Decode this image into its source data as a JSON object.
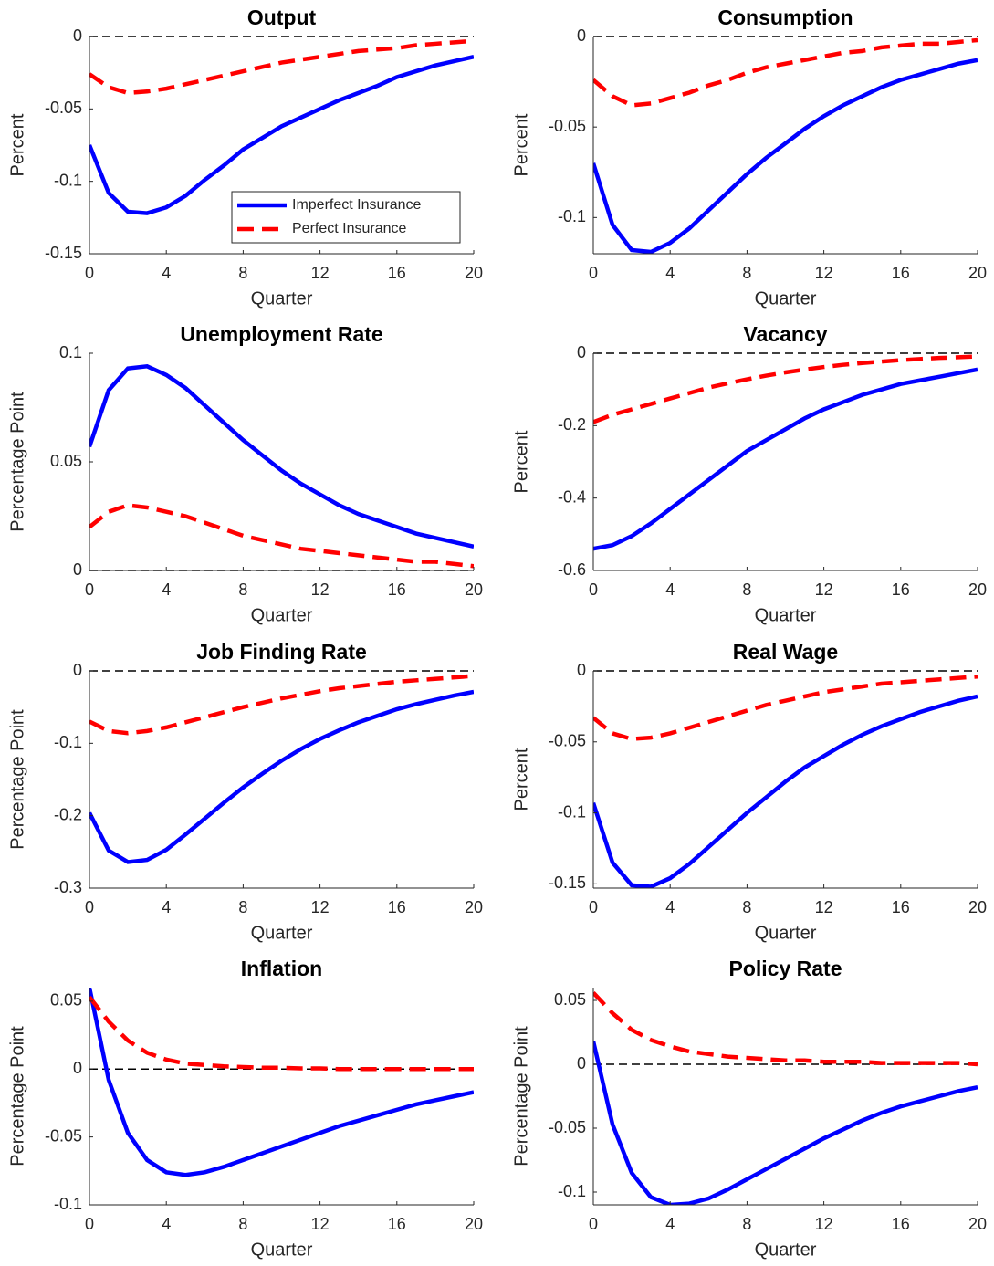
{
  "chart_data": [
    {
      "type": "line",
      "title": "Output",
      "xlabel": "Quarter",
      "ylabel": "Percent",
      "x": [
        0,
        1,
        2,
        3,
        4,
        5,
        6,
        7,
        8,
        9,
        10,
        11,
        12,
        13,
        14,
        15,
        16,
        17,
        18,
        19,
        20
      ],
      "xlim": [
        0,
        20
      ],
      "xticks": [
        0,
        4,
        8,
        12,
        16,
        20
      ],
      "ylim": [
        -0.15,
        0
      ],
      "yticks": [
        -0.15,
        -0.1,
        -0.05,
        0
      ],
      "hline": 0,
      "legend": "lower right",
      "series": [
        {
          "name": "Imperfect Insurance",
          "color": "#0000ff",
          "dash": false,
          "values": [
            -0.075,
            -0.108,
            -0.121,
            -0.122,
            -0.118,
            -0.11,
            -0.099,
            -0.089,
            -0.078,
            -0.07,
            -0.062,
            -0.056,
            -0.05,
            -0.044,
            -0.039,
            -0.034,
            -0.028,
            -0.024,
            -0.02,
            -0.017,
            -0.014
          ]
        },
        {
          "name": "Perfect Insurance",
          "color": "#ff0000",
          "dash": true,
          "values": [
            -0.026,
            -0.035,
            -0.039,
            -0.038,
            -0.036,
            -0.033,
            -0.03,
            -0.027,
            -0.024,
            -0.021,
            -0.018,
            -0.016,
            -0.014,
            -0.012,
            -0.01,
            -0.009,
            -0.008,
            -0.006,
            -0.005,
            -0.004,
            -0.003
          ]
        }
      ]
    },
    {
      "type": "line",
      "title": "Consumption",
      "xlabel": "Quarter",
      "ylabel": "Percent",
      "x": [
        0,
        1,
        2,
        3,
        4,
        5,
        6,
        7,
        8,
        9,
        10,
        11,
        12,
        13,
        14,
        15,
        16,
        17,
        18,
        19,
        20
      ],
      "xlim": [
        0,
        20
      ],
      "xticks": [
        0,
        4,
        8,
        12,
        16,
        20
      ],
      "ylim": [
        -0.12,
        0
      ],
      "yticks": [
        -0.1,
        -0.05,
        0
      ],
      "hline": 0,
      "series": [
        {
          "color": "#0000ff",
          "dash": false,
          "values": [
            -0.07,
            -0.104,
            -0.118,
            -0.119,
            -0.114,
            -0.106,
            -0.096,
            -0.086,
            -0.076,
            -0.067,
            -0.059,
            -0.051,
            -0.044,
            -0.038,
            -0.033,
            -0.028,
            -0.024,
            -0.021,
            -0.018,
            -0.015,
            -0.013
          ]
        },
        {
          "color": "#ff0000",
          "dash": true,
          "values": [
            -0.024,
            -0.033,
            -0.038,
            -0.037,
            -0.034,
            -0.031,
            -0.027,
            -0.024,
            -0.02,
            -0.017,
            -0.015,
            -0.013,
            -0.011,
            -0.009,
            -0.008,
            -0.006,
            -0.005,
            -0.004,
            -0.004,
            -0.003,
            -0.002
          ]
        }
      ]
    },
    {
      "type": "line",
      "title": "Unemployment Rate",
      "xlabel": "Quarter",
      "ylabel": "Percentage Point",
      "x": [
        0,
        1,
        2,
        3,
        4,
        5,
        6,
        7,
        8,
        9,
        10,
        11,
        12,
        13,
        14,
        15,
        16,
        17,
        18,
        19,
        20
      ],
      "xlim": [
        0,
        20
      ],
      "xticks": [
        0,
        4,
        8,
        12,
        16,
        20
      ],
      "ylim": [
        0,
        0.1
      ],
      "yticks": [
        0,
        0.05,
        0.1
      ],
      "hline": 0,
      "series": [
        {
          "color": "#0000ff",
          "dash": false,
          "values": [
            0.057,
            0.083,
            0.093,
            0.094,
            0.09,
            0.084,
            0.076,
            0.068,
            0.06,
            0.053,
            0.046,
            0.04,
            0.035,
            0.03,
            0.026,
            0.023,
            0.02,
            0.017,
            0.015,
            0.013,
            0.011
          ]
        },
        {
          "color": "#ff0000",
          "dash": true,
          "values": [
            0.02,
            0.027,
            0.03,
            0.029,
            0.027,
            0.025,
            0.022,
            0.019,
            0.016,
            0.014,
            0.012,
            0.01,
            0.009,
            0.008,
            0.007,
            0.006,
            0.005,
            0.004,
            0.004,
            0.003,
            0.002
          ]
        }
      ]
    },
    {
      "type": "line",
      "title": "Vacancy",
      "xlabel": "Quarter",
      "ylabel": "Percent",
      "x": [
        0,
        1,
        2,
        3,
        4,
        5,
        6,
        7,
        8,
        9,
        10,
        11,
        12,
        13,
        14,
        15,
        16,
        17,
        18,
        19,
        20
      ],
      "xlim": [
        0,
        20
      ],
      "xticks": [
        0,
        4,
        8,
        12,
        16,
        20
      ],
      "ylim": [
        -0.6,
        0
      ],
      "yticks": [
        -0.6,
        -0.4,
        -0.2,
        0
      ],
      "hline": 0,
      "series": [
        {
          "color": "#0000ff",
          "dash": false,
          "values": [
            -0.54,
            -0.53,
            -0.505,
            -0.47,
            -0.43,
            -0.39,
            -0.35,
            -0.31,
            -0.27,
            -0.24,
            -0.21,
            -0.18,
            -0.155,
            -0.135,
            -0.115,
            -0.1,
            -0.085,
            -0.075,
            -0.065,
            -0.055,
            -0.045
          ]
        },
        {
          "color": "#ff0000",
          "dash": true,
          "values": [
            -0.19,
            -0.17,
            -0.155,
            -0.14,
            -0.125,
            -0.11,
            -0.095,
            -0.083,
            -0.072,
            -0.062,
            -0.053,
            -0.045,
            -0.038,
            -0.032,
            -0.027,
            -0.023,
            -0.019,
            -0.016,
            -0.013,
            -0.011,
            -0.009
          ]
        }
      ]
    },
    {
      "type": "line",
      "title": "Job Finding Rate",
      "xlabel": "Quarter",
      "ylabel": "Percentage Point",
      "x": [
        0,
        1,
        2,
        3,
        4,
        5,
        6,
        7,
        8,
        9,
        10,
        11,
        12,
        13,
        14,
        15,
        16,
        17,
        18,
        19,
        20
      ],
      "xlim": [
        0,
        20
      ],
      "xticks": [
        0,
        4,
        8,
        12,
        16,
        20
      ],
      "ylim": [
        -0.3,
        0
      ],
      "yticks": [
        -0.3,
        -0.2,
        -0.1,
        0
      ],
      "hline": 0,
      "series": [
        {
          "color": "#0000ff",
          "dash": false,
          "values": [
            -0.196,
            -0.248,
            -0.264,
            -0.261,
            -0.247,
            -0.226,
            -0.204,
            -0.182,
            -0.161,
            -0.142,
            -0.124,
            -0.108,
            -0.094,
            -0.082,
            -0.071,
            -0.062,
            -0.053,
            -0.046,
            -0.04,
            -0.034,
            -0.029
          ]
        },
        {
          "color": "#ff0000",
          "dash": true,
          "values": [
            -0.07,
            -0.083,
            -0.086,
            -0.083,
            -0.078,
            -0.071,
            -0.064,
            -0.057,
            -0.05,
            -0.044,
            -0.038,
            -0.033,
            -0.028,
            -0.024,
            -0.021,
            -0.018,
            -0.015,
            -0.013,
            -0.011,
            -0.009,
            -0.007
          ]
        }
      ]
    },
    {
      "type": "line",
      "title": "Real Wage",
      "xlabel": "Quarter",
      "ylabel": "Percent",
      "x": [
        0,
        1,
        2,
        3,
        4,
        5,
        6,
        7,
        8,
        9,
        10,
        11,
        12,
        13,
        14,
        15,
        16,
        17,
        18,
        19,
        20
      ],
      "xlim": [
        0,
        20
      ],
      "xticks": [
        0,
        4,
        8,
        12,
        16,
        20
      ],
      "ylim": [
        -0.153,
        0
      ],
      "yticks": [
        -0.15,
        -0.1,
        -0.05,
        0
      ],
      "hline": 0,
      "series": [
        {
          "color": "#0000ff",
          "dash": false,
          "values": [
            -0.093,
            -0.135,
            -0.151,
            -0.152,
            -0.146,
            -0.136,
            -0.124,
            -0.112,
            -0.1,
            -0.089,
            -0.078,
            -0.068,
            -0.06,
            -0.052,
            -0.045,
            -0.039,
            -0.034,
            -0.029,
            -0.025,
            -0.021,
            -0.018
          ]
        },
        {
          "color": "#ff0000",
          "dash": true,
          "values": [
            -0.033,
            -0.044,
            -0.048,
            -0.047,
            -0.044,
            -0.04,
            -0.036,
            -0.032,
            -0.028,
            -0.024,
            -0.021,
            -0.018,
            -0.015,
            -0.013,
            -0.011,
            -0.009,
            -0.008,
            -0.007,
            -0.006,
            -0.005,
            -0.004
          ]
        }
      ]
    },
    {
      "type": "line",
      "title": "Inflation",
      "xlabel": "Quarter",
      "ylabel": "Percentage Point",
      "x": [
        0,
        1,
        2,
        3,
        4,
        5,
        6,
        7,
        8,
        9,
        10,
        11,
        12,
        13,
        14,
        15,
        16,
        17,
        18,
        19,
        20
      ],
      "xlim": [
        0,
        20
      ],
      "xticks": [
        0,
        4,
        8,
        12,
        16,
        20
      ],
      "ylim": [
        -0.1,
        0.06
      ],
      "yticks": [
        -0.1,
        -0.05,
        0,
        0.05
      ],
      "hline": 0,
      "series": [
        {
          "color": "#0000ff",
          "dash": false,
          "values": [
            0.06,
            -0.008,
            -0.047,
            -0.067,
            -0.076,
            -0.078,
            -0.076,
            -0.072,
            -0.067,
            -0.062,
            -0.057,
            -0.052,
            -0.047,
            -0.042,
            -0.038,
            -0.034,
            -0.03,
            -0.026,
            -0.023,
            -0.02,
            -0.017
          ]
        },
        {
          "color": "#ff0000",
          "dash": true,
          "values": [
            0.053,
            0.035,
            0.021,
            0.012,
            0.007,
            0.004,
            0.003,
            0.002,
            0.0015,
            0.001,
            0.001,
            0.0005,
            0.0005,
            0,
            0,
            0,
            0,
            0,
            0,
            0,
            0
          ]
        }
      ]
    },
    {
      "type": "line",
      "title": "Policy Rate",
      "xlabel": "Quarter",
      "ylabel": "Percentage Point",
      "x": [
        0,
        1,
        2,
        3,
        4,
        5,
        6,
        7,
        8,
        9,
        10,
        11,
        12,
        13,
        14,
        15,
        16,
        17,
        18,
        19,
        20
      ],
      "xlim": [
        0,
        20
      ],
      "xticks": [
        0,
        4,
        8,
        12,
        16,
        20
      ],
      "ylim": [
        -0.11,
        0.06
      ],
      "yticks": [
        -0.1,
        -0.05,
        0,
        0.05
      ],
      "hline": 0,
      "series": [
        {
          "color": "#0000ff",
          "dash": false,
          "values": [
            0.018,
            -0.047,
            -0.085,
            -0.104,
            -0.11,
            -0.109,
            -0.105,
            -0.098,
            -0.09,
            -0.082,
            -0.074,
            -0.066,
            -0.058,
            -0.051,
            -0.044,
            -0.038,
            -0.033,
            -0.029,
            -0.025,
            -0.021,
            -0.018
          ]
        },
        {
          "color": "#ff0000",
          "dash": true,
          "values": [
            0.056,
            0.04,
            0.027,
            0.019,
            0.014,
            0.01,
            0.008,
            0.006,
            0.005,
            0.004,
            0.003,
            0.003,
            0.002,
            0.002,
            0.002,
            0.001,
            0.001,
            0.001,
            0.001,
            0.001,
            0
          ]
        }
      ]
    }
  ]
}
